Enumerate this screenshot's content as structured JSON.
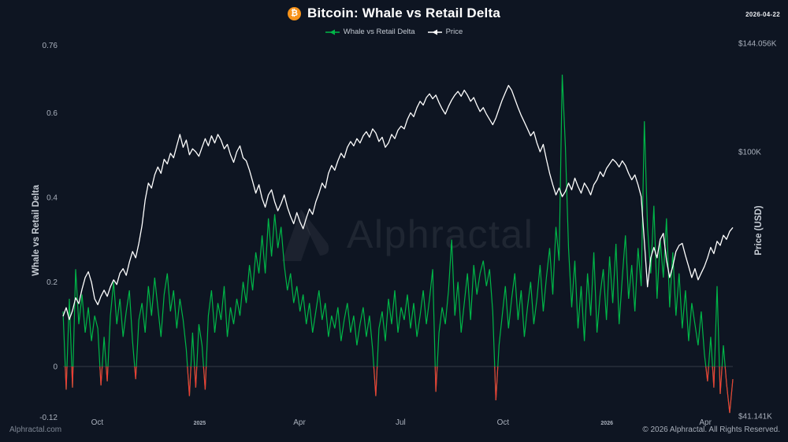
{
  "header": {
    "title": "Bitcoin: Whale vs Retail Delta",
    "bitcoin_symbol": "₿",
    "date_label": "2026-04-22"
  },
  "legend": [
    {
      "label": "Whale vs Retail Delta",
      "color": "#00b648"
    },
    {
      "label": "Price",
      "color": "#ffffff"
    }
  ],
  "watermark": {
    "text": "Alphractal"
  },
  "footer": {
    "left": "Alphractal.com",
    "right": "© 2026 Alphractal. All Rights Reserved."
  },
  "colors": {
    "background": "#0e1522",
    "delta_positive": "#00b648",
    "delta_negative": "#ee3b35",
    "price": "#ffffff",
    "bitcoin_orange": "#f7931a",
    "tick": "#a9b0bc",
    "zero_line": "rgba(255,255,255,0.16)"
  },
  "chart_data": {
    "type": "line",
    "title": "Bitcoin: Whale vs Retail Delta",
    "grid": "off",
    "legend_position": "top-center",
    "x_axis": {
      "note": "daily data, Sep 2024 - 2026-04-22",
      "ticks": [
        {
          "label": "Oct",
          "pos": 0.051,
          "year": false
        },
        {
          "label": "2025",
          "pos": 0.204,
          "year": true
        },
        {
          "label": "Apr",
          "pos": 0.353,
          "year": false
        },
        {
          "label": "Jul",
          "pos": 0.504,
          "year": false
        },
        {
          "label": "Oct",
          "pos": 0.657,
          "year": false
        },
        {
          "label": "2026",
          "pos": 0.812,
          "year": true
        },
        {
          "label": "Apr",
          "pos": 0.959,
          "year": false
        }
      ]
    },
    "y_left": {
      "label": "Whale vs Retail Delta",
      "scale": "linear",
      "range": [
        -0.121,
        0.781
      ],
      "ticks": [
        {
          "label": "0.76",
          "value": 0.76
        },
        {
          "label": "0.6",
          "value": 0.6
        },
        {
          "label": "0.4",
          "value": 0.4
        },
        {
          "label": "0.2",
          "value": 0.2
        },
        {
          "label": "0",
          "value": 0
        },
        {
          "label": "-0.12",
          "value": -0.12
        }
      ]
    },
    "y_right": {
      "label": "Price (USD)",
      "scale": "log",
      "unit": "thousand USD",
      "range": [
        40.9,
        147.5
      ],
      "ticks": [
        {
          "label": "$144.056K",
          "value": 144.056
        },
        {
          "label": "$100K",
          "value": 100
        },
        {
          "label": "$41.141K",
          "value": 41.141
        }
      ]
    },
    "series": [
      {
        "name": "Whale vs Retail Delta",
        "axis": "left",
        "color_positive": "#00b648",
        "color_negative": "#ee3b35",
        "values": [
          0.13,
          -0.055,
          0.16,
          -0.05,
          0.23,
          0.1,
          0.17,
          0.08,
          0.14,
          0.06,
          0.12,
          0.09,
          -0.045,
          0.07,
          -0.035,
          0.12,
          0.2,
          0.1,
          0.16,
          0.07,
          0.13,
          0.18,
          0.06,
          -0.03,
          0.11,
          0.15,
          0.08,
          0.19,
          0.12,
          0.21,
          0.14,
          0.07,
          0.17,
          0.22,
          0.13,
          0.18,
          0.09,
          0.16,
          0.11,
          0.04,
          -0.07,
          0.08,
          -0.05,
          0.1,
          0.05,
          -0.055,
          0.12,
          0.18,
          0.08,
          0.15,
          0.11,
          0.19,
          0.07,
          0.14,
          0.1,
          0.16,
          0.12,
          0.2,
          0.15,
          0.24,
          0.18,
          0.27,
          0.22,
          0.31,
          0.22,
          0.35,
          0.26,
          0.36,
          0.28,
          0.33,
          0.24,
          0.18,
          0.22,
          0.15,
          0.19,
          0.13,
          0.17,
          0.1,
          0.15,
          0.08,
          0.13,
          0.18,
          0.11,
          0.15,
          0.07,
          0.12,
          0.09,
          0.14,
          0.06,
          0.11,
          0.15,
          0.08,
          0.12,
          0.05,
          0.1,
          0.14,
          0.07,
          0.12,
          0.04,
          -0.07,
          0.09,
          0.13,
          0.06,
          0.16,
          0.1,
          0.18,
          0.08,
          0.14,
          0.11,
          0.17,
          0.09,
          0.15,
          0.07,
          0.12,
          0.18,
          0.1,
          0.16,
          0.23,
          -0.06,
          0.08,
          0.14,
          0.1,
          0.18,
          0.3,
          0.12,
          0.2,
          0.08,
          0.15,
          0.22,
          0.11,
          0.24,
          0.17,
          0.22,
          0.25,
          0.19,
          0.23,
          0.13,
          -0.08,
          0.05,
          0.12,
          0.19,
          0.09,
          0.16,
          0.22,
          0.11,
          0.18,
          0.07,
          0.14,
          0.2,
          0.1,
          0.16,
          0.24,
          0.13,
          0.21,
          0.28,
          0.17,
          0.33,
          0.25,
          0.69,
          0.52,
          0.28,
          0.14,
          0.25,
          0.09,
          0.19,
          0.06,
          0.22,
          0.12,
          0.27,
          0.08,
          0.17,
          0.23,
          0.11,
          0.26,
          0.15,
          0.29,
          0.1,
          0.21,
          0.31,
          0.16,
          0.24,
          0.13,
          0.28,
          0.19,
          0.58,
          0.33,
          0.22,
          0.38,
          0.16,
          0.3,
          0.21,
          0.35,
          0.14,
          0.27,
          0.12,
          0.22,
          0.09,
          0.18,
          0.06,
          0.15,
          0.1,
          0.05,
          0.13,
          0.03,
          -0.035,
          0.07,
          -0.05,
          0.19,
          -0.065,
          0.05,
          -0.04,
          -0.11,
          -0.03
        ]
      },
      {
        "name": "Price",
        "axis": "right",
        "color": "#ffffff",
        "values": [
          57.5,
          59.2,
          56.9,
          58.6,
          61.2,
          60.0,
          63.0,
          65.5,
          66.8,
          64.5,
          61.0,
          59.8,
          61.5,
          62.8,
          61.5,
          63.5,
          65.0,
          64.0,
          66.5,
          67.5,
          66.0,
          69.0,
          71.5,
          70.0,
          73.5,
          78.0,
          85.0,
          90.0,
          88.5,
          92.5,
          95.0,
          93.0,
          97.5,
          96.0,
          99.5,
          98.0,
          102.0,
          106.0,
          101.5,
          104.0,
          99.0,
          101.0,
          100.0,
          98.5,
          101.5,
          104.5,
          102.0,
          105.5,
          103.0,
          106.0,
          104.0,
          101.0,
          102.5,
          99.0,
          96.5,
          100.0,
          102.0,
          98.0,
          97.0,
          94.0,
          90.5,
          87.0,
          89.5,
          85.5,
          83.0,
          86.5,
          88.0,
          84.5,
          82.0,
          84.0,
          86.5,
          83.0,
          80.5,
          78.5,
          81.5,
          79.0,
          77.2,
          80.0,
          82.5,
          81.0,
          84.5,
          87.0,
          90.0,
          88.5,
          93.0,
          95.5,
          94.0,
          97.0,
          99.5,
          98.0,
          101.5,
          103.5,
          102.0,
          104.5,
          103.0,
          105.5,
          107.0,
          105.0,
          108.0,
          106.5,
          103.5,
          105.0,
          101.5,
          103.0,
          106.0,
          104.5,
          107.5,
          109.0,
          108.0,
          111.5,
          114.0,
          112.5,
          116.0,
          118.5,
          117.0,
          120.0,
          121.5,
          119.5,
          121.0,
          118.0,
          115.5,
          113.5,
          116.5,
          119.0,
          121.0,
          122.5,
          120.5,
          123.0,
          121.0,
          118.5,
          120.0,
          117.0,
          114.5,
          116.0,
          113.5,
          111.5,
          109.5,
          112.0,
          115.5,
          119.0,
          122.0,
          125.0,
          123.0,
          119.5,
          116.0,
          113.0,
          110.5,
          108.0,
          105.5,
          107.0,
          103.0,
          100.0,
          102.5,
          97.5,
          93.0,
          89.5,
          86.5,
          88.5,
          86.0,
          87.5,
          90.0,
          88.0,
          91.5,
          89.0,
          87.0,
          90.0,
          88.5,
          86.5,
          89.5,
          91.0,
          93.5,
          92.0,
          94.5,
          96.0,
          97.5,
          96.5,
          95.0,
          97.0,
          95.5,
          93.0,
          91.0,
          92.5,
          89.5,
          86.0,
          74.0,
          63.5,
          70.0,
          72.5,
          70.0,
          74.5,
          76.0,
          69.5,
          65.5,
          68.0,
          71.5,
          73.0,
          73.5,
          70.5,
          68.0,
          65.5,
          67.5,
          65.0,
          66.5,
          68.0,
          70.0,
          72.5,
          71.0,
          74.0,
          73.0,
          75.5,
          74.5,
          76.5,
          77.5
        ]
      }
    ]
  }
}
